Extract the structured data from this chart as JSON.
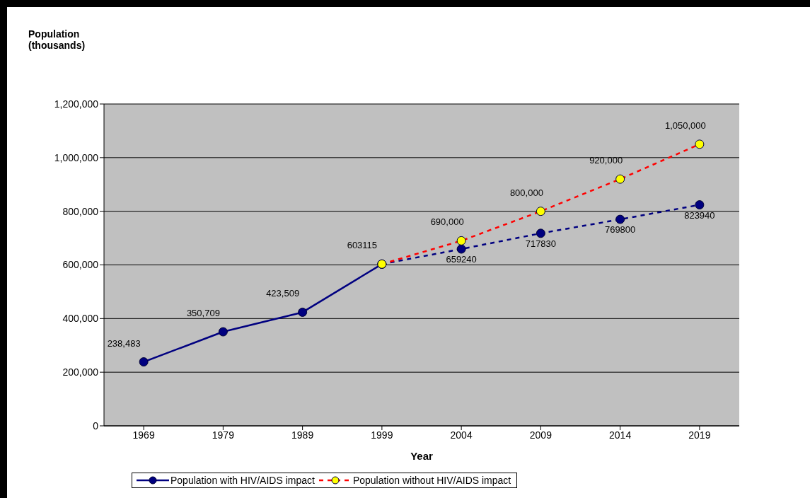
{
  "chart_data": {
    "type": "line",
    "xlabel": "Year",
    "ylabel": "Population (thousands)",
    "categories": [
      "1969",
      "1979",
      "1989",
      "1999",
      "2004",
      "2009",
      "2014",
      "2019"
    ],
    "ylim": [
      0,
      1200000
    ],
    "yticks": [
      {
        "value": 0,
        "label": "0"
      },
      {
        "value": 200000,
        "label": "200,000"
      },
      {
        "value": 400000,
        "label": "400,000"
      },
      {
        "value": 600000,
        "label": "600,000"
      },
      {
        "value": 800000,
        "label": "800,000"
      },
      {
        "value": 1000000,
        "label": "1,000,000"
      },
      {
        "value": 1200000,
        "label": "1,200,000"
      }
    ],
    "grid": "y",
    "legend": "bottom",
    "marker": "circle",
    "series": [
      {
        "name": "Population with HIV/AIDS impact",
        "color": "#000080",
        "line_style": "solid",
        "values": [
          238483,
          350709,
          423509,
          603115,
          null,
          null,
          null,
          null
        ],
        "value_labels": [
          "238,483",
          "350,709",
          "423,509",
          "603115",
          null,
          null,
          null,
          null
        ]
      },
      {
        "color": "#000080",
        "line_style": "dashed",
        "values": [
          null,
          null,
          null,
          603115,
          659240,
          717830,
          769800,
          823940
        ],
        "value_labels": [
          null,
          null,
          null,
          null,
          "659240",
          "717830",
          "769800",
          "823940"
        ]
      },
      {
        "name": "Population without HIV/AIDS impact",
        "color": "#ff0000",
        "colors": [
          null,
          null,
          null,
          "#ffff00",
          "#ffff00",
          "#ffff00",
          "#ffff00",
          "#ffff00"
        ],
        "line_style": "dashed",
        "values": [
          null,
          null,
          null,
          603115,
          690000,
          800000,
          920000,
          1050000
        ],
        "value_labels": [
          null,
          null,
          null,
          null,
          "690,000",
          "800,000",
          "920,000",
          "1,050,000"
        ]
      }
    ]
  }
}
